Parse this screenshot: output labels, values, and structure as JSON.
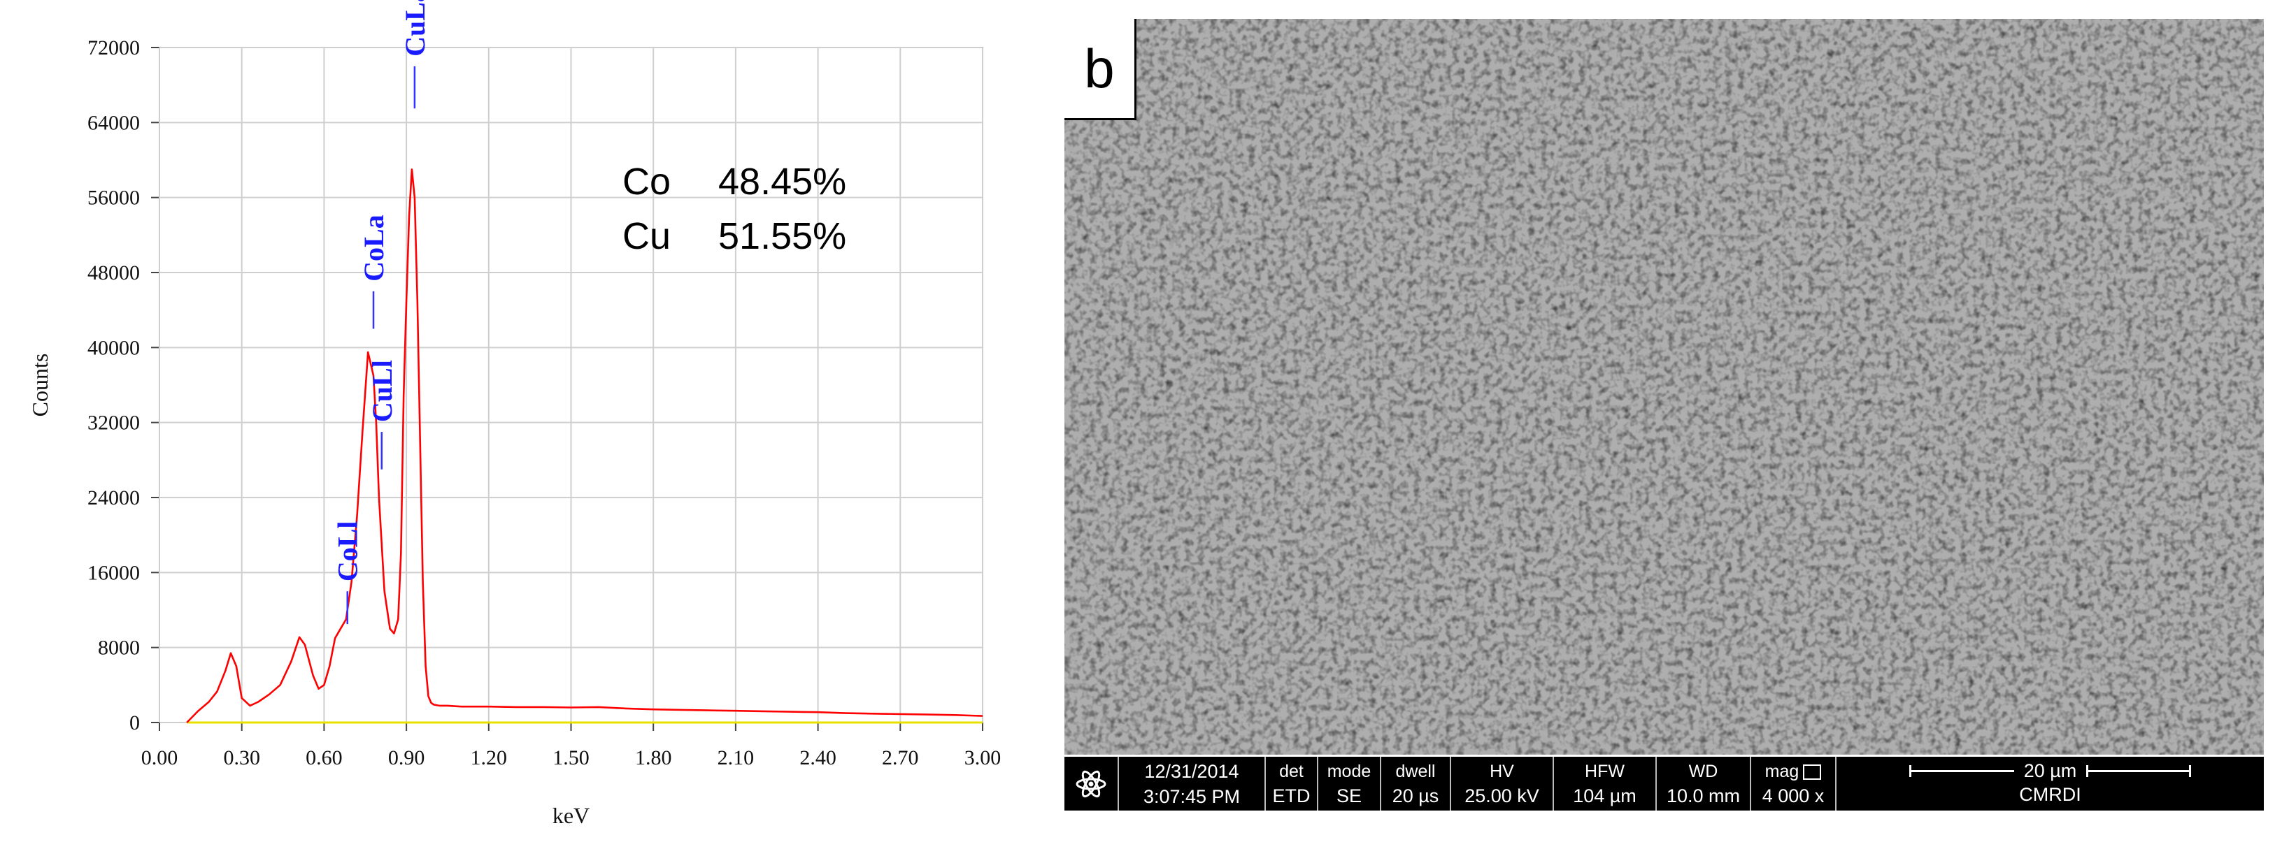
{
  "chart_data": {
    "type": "line",
    "xlabel": "keV",
    "ylabel": "Counts",
    "xlim": [
      0.0,
      3.0
    ],
    "ylim": [
      0,
      72000
    ],
    "x_ticks": [
      "0.00",
      "0.30",
      "0.60",
      "0.90",
      "1.20",
      "1.50",
      "1.80",
      "2.10",
      "2.40",
      "2.70",
      "3.00"
    ],
    "y_ticks": [
      "0",
      "8000",
      "16000",
      "24000",
      "32000",
      "40000",
      "48000",
      "56000",
      "64000",
      "72000"
    ],
    "grid": true,
    "series": [
      {
        "color": "#ff0000",
        "x": [
          0.1,
          0.14,
          0.18,
          0.21,
          0.24,
          0.26,
          0.28,
          0.3,
          0.33,
          0.36,
          0.4,
          0.44,
          0.48,
          0.51,
          0.53,
          0.56,
          0.58,
          0.6,
          0.62,
          0.64,
          0.66,
          0.68,
          0.7,
          0.72,
          0.74,
          0.76,
          0.78,
          0.79,
          0.8,
          0.82,
          0.84,
          0.855,
          0.87,
          0.88,
          0.89,
          0.9,
          0.91,
          0.92,
          0.93,
          0.94,
          0.95,
          0.96,
          0.97,
          0.98,
          0.99,
          1.0,
          1.02,
          1.05,
          1.1,
          1.2,
          1.3,
          1.4,
          1.5,
          1.6,
          1.7,
          1.8,
          1.9,
          2.0,
          2.1,
          2.2,
          2.3,
          2.4,
          2.5,
          2.6,
          2.7,
          2.8,
          2.9,
          3.0
        ],
        "y": [
          0,
          1200,
          2200,
          3300,
          5500,
          7400,
          6000,
          2600,
          1800,
          2200,
          3000,
          4000,
          6500,
          9100,
          8300,
          5000,
          3600,
          4000,
          6000,
          9000,
          10000,
          11000,
          15000,
          22000,
          31000,
          39500,
          37000,
          32000,
          24000,
          14000,
          10000,
          9500,
          11000,
          18000,
          35000,
          45000,
          54000,
          59000,
          56000,
          45000,
          30000,
          15000,
          6000,
          2800,
          2100,
          1900,
          1800,
          1800,
          1700,
          1700,
          1650,
          1650,
          1600,
          1650,
          1500,
          1400,
          1350,
          1300,
          1250,
          1200,
          1150,
          1100,
          1000,
          950,
          900,
          850,
          800,
          700
        ]
      },
      {
        "color": "#e8e000",
        "x": [
          0.1,
          3.0
        ],
        "y": [
          0,
          0
        ]
      }
    ],
    "peak_markers": [
      {
        "label": "CoLl",
        "x": 0.685,
        "y_bottom": 10500,
        "y_top": 14000
      },
      {
        "label": "CuLl",
        "x": 0.81,
        "y_bottom": 27000,
        "y_top": 31000
      },
      {
        "label": "CoLa",
        "x": 0.78,
        "y_bottom": 42000,
        "y_top": 46000
      },
      {
        "label": "CuLa",
        "x": 0.93,
        "y_bottom": 65500,
        "y_top": 70000
      }
    ],
    "composition": [
      {
        "element": "Co",
        "value": "48.45%"
      },
      {
        "element": "Cu",
        "value": "51.55%"
      }
    ]
  },
  "sem_panel": {
    "letter": "b",
    "info_bar": {
      "date": "12/31/2014",
      "time": "3:07:45 PM",
      "det_label": "det",
      "det_value": "ETD",
      "mode_label": "mode",
      "mode_value": "SE",
      "dwell_label": "dwell",
      "dwell_value": "20 µs",
      "hv_label": "HV",
      "hv_value": "25.00 kV",
      "hfw_label": "HFW",
      "hfw_value": "104 µm",
      "wd_label": "WD",
      "wd_value": "10.0 mm",
      "mag_label": "mag",
      "mag_value": "4 000 x",
      "scale_label": "20 µm",
      "institution": "CMRDI"
    }
  }
}
